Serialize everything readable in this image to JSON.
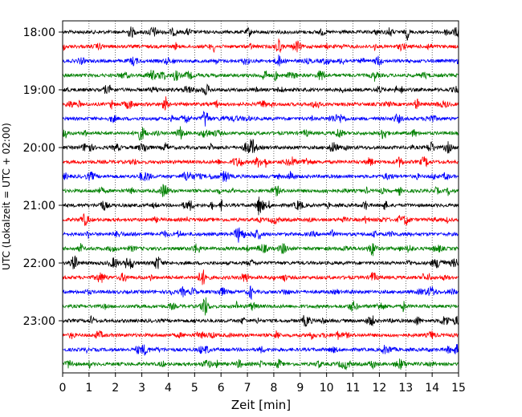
{
  "chart_data": {
    "type": "line",
    "chart_kind": "helicorder",
    "xlabel": "Zeit  [min]",
    "ylabel": "UTC (Lokalzeit = UTC + 02:00)",
    "xlim": [
      0,
      15
    ],
    "x_ticks": [
      "0",
      "1",
      "2",
      "3",
      "4",
      "5",
      "6",
      "7",
      "8",
      "9",
      "10",
      "11",
      "12",
      "13",
      "14",
      "15"
    ],
    "y_ticks": [
      "18:00",
      "19:00",
      "20:00",
      "21:00",
      "22:00",
      "23:00"
    ],
    "trace_minutes": 15,
    "trace_count": 24,
    "start_time": "18:00",
    "colors_cycle": [
      "#000000",
      "#ff0000",
      "#0000ff",
      "#008000"
    ],
    "grid": "vertical dotted lines at each minute",
    "traces": [
      {
        "start": "18:00",
        "color": "#000000"
      },
      {
        "start": "18:15",
        "color": "#ff0000"
      },
      {
        "start": "18:30",
        "color": "#0000ff"
      },
      {
        "start": "18:45",
        "color": "#008000"
      },
      {
        "start": "19:00",
        "color": "#000000"
      },
      {
        "start": "19:15",
        "color": "#ff0000"
      },
      {
        "start": "19:30",
        "color": "#0000ff"
      },
      {
        "start": "19:45",
        "color": "#008000"
      },
      {
        "start": "20:00",
        "color": "#000000"
      },
      {
        "start": "20:15",
        "color": "#ff0000"
      },
      {
        "start": "20:30",
        "color": "#0000ff"
      },
      {
        "start": "20:45",
        "color": "#008000"
      },
      {
        "start": "21:00",
        "color": "#000000"
      },
      {
        "start": "21:15",
        "color": "#ff0000"
      },
      {
        "start": "21:30",
        "color": "#0000ff"
      },
      {
        "start": "21:45",
        "color": "#008000"
      },
      {
        "start": "22:00",
        "color": "#000000"
      },
      {
        "start": "22:15",
        "color": "#ff0000"
      },
      {
        "start": "22:30",
        "color": "#0000ff"
      },
      {
        "start": "22:45",
        "color": "#008000"
      },
      {
        "start": "23:00",
        "color": "#000000"
      },
      {
        "start": "23:15",
        "color": "#ff0000"
      },
      {
        "start": "23:30",
        "color": "#0000ff"
      },
      {
        "start": "23:45",
        "color": "#008000"
      }
    ]
  }
}
